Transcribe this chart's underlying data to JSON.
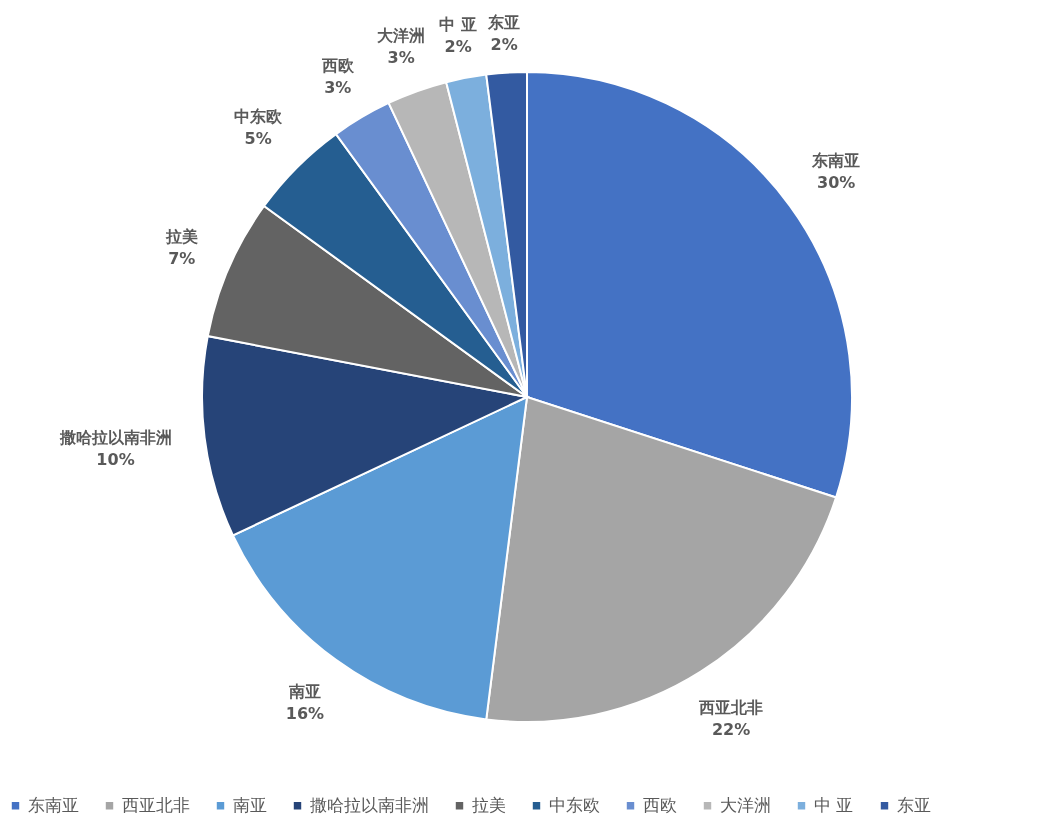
{
  "chart_data": {
    "type": "pie",
    "categories": [
      "东南亚",
      "西亚北非",
      "南亚",
      "撒哈拉以南非洲",
      "拉美",
      "中东欧",
      "西欧",
      "大洋洲",
      "中 亚",
      "东亚"
    ],
    "values": [
      30,
      22,
      16,
      10,
      7,
      5,
      3,
      3,
      2,
      2
    ],
    "value_labels": [
      "30%",
      "22%",
      "16%",
      "10%",
      "7%",
      "5%",
      "3%",
      "3%",
      "2%",
      "2%"
    ],
    "colors": [
      "#4472c4",
      "#a5a5a5",
      "#5b9bd5",
      "#264478",
      "#636363",
      "#255e91",
      "#698ed0",
      "#b7b7b7",
      "#7cafdd",
      "#335aa1"
    ],
    "legend": "bottom"
  }
}
